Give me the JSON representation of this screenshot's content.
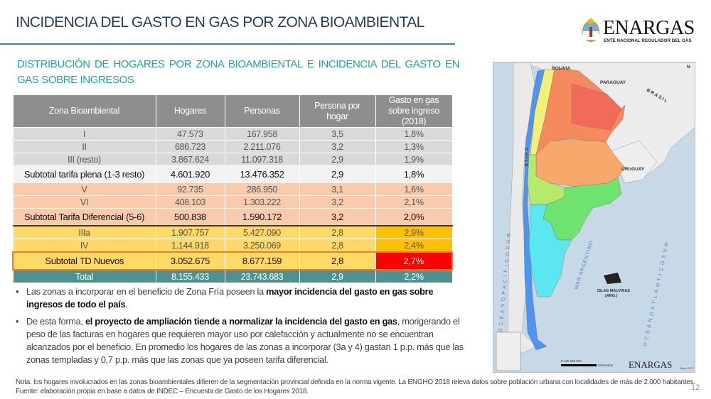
{
  "header": {
    "title": "INCIDENCIA DEL GASTO EN GAS POR ZONA BIOAMBIENTAL",
    "logo_text": "ENARGAS",
    "logo_subtitle": "ENTE NACIONAL REGULADOR DEL GAS"
  },
  "subtitle": "DISTRIBUCIÓN DE HOGARES POR ZONA BIOAMBIENTAL E INCIDENCIA DEL GASTO EN GAS SOBRE INGRESOS",
  "table": {
    "columns": [
      "Zona  Bioambiental",
      "Hogares",
      "Personas",
      "Persona por hogar",
      "Gasto en gas sobre ingreso (2018)"
    ],
    "rows": [
      {
        "zona": "I",
        "hogares": "47.573",
        "personas": "167.958",
        "pph": "3,5",
        "gasto": "1,8%"
      },
      {
        "zona": "II",
        "hogares": "686.723",
        "personas": "2.211.076",
        "pph": "3,2",
        "gasto": "1,3%"
      },
      {
        "zona": "III (resto)",
        "hogares": "3.867.624",
        "personas": "11.097.318",
        "pph": "2,9",
        "gasto": "1,9%"
      },
      {
        "zona": "Subtotal tarifa plena (1-3 resto)",
        "hogares": "4.601.920",
        "personas": "13.476.352",
        "pph": "2,9",
        "gasto": "1,8%"
      },
      {
        "zona": "V",
        "hogares": "92.735",
        "personas": "286.950",
        "pph": "3,1",
        "gasto": "1,6%"
      },
      {
        "zona": "VI",
        "hogares": "408.103",
        "personas": "1.303.222",
        "pph": "3,2",
        "gasto": "2,1%"
      },
      {
        "zona": "Subtotal Tarifa Diferencial (5-6)",
        "hogares": "500.838",
        "personas": "1.590.172",
        "pph": "3,2",
        "gasto": "2,0%"
      },
      {
        "zona": "IIIa",
        "hogares": "1.907.757",
        "personas": "5.427.090",
        "pph": "2,8",
        "gasto": "2,9%"
      },
      {
        "zona": "IV",
        "hogares": "1.144.918",
        "personas": "3.250.069",
        "pph": "2,8",
        "gasto": "2,4%"
      },
      {
        "zona": "Subtotal TD Nuevos",
        "hogares": "3.052.675",
        "personas": "8.677.159",
        "pph": "2,8",
        "gasto": "2,7%"
      },
      {
        "zona": "Total",
        "hogares": "8.155.433",
        "personas": "23.743.683",
        "pph": "2,9",
        "gasto": "2,2%"
      }
    ]
  },
  "bullets": [
    {
      "pre": "Las zonas a incorporar en el beneficio de Zona Fría poseen la ",
      "bold": "mayor incidencia del gasto en gas sobre ingresos de todo el país",
      "post": "."
    },
    {
      "pre": "De esta forma, ",
      "bold": "el proyecto de ampliación tiende a normalizar la incidencia del gasto en gas",
      "post": ", morigerando el peso de las facturas en hogares que requieren mayor uso por calefacción y actualmente no se encuentran alcanzados por el beneficio. En promedio los hogares de las zonas a incorporar (3a y 4) gastan 1 p.p. más que las zonas templadas y 0,7 p.p. más que las zonas que ya poseen tarifa diferencial."
    }
  ],
  "note": "Nota: los hogares involucrados en las zonas bioambientales difieren de la segmentación provincial definida en la norma vigente. La ENGHO 2018 releva datos sobre población urbana con localidades de más de 2.000 habitantes. Fuente: elaboración propia en base a datos de INDEC – Encuesta de Gasto de los Hogares 2018.",
  "page_number": "12",
  "map": {
    "labels": {
      "bolivia": "BOLIVIA",
      "paraguay": "PARAGUAY",
      "brasil": "B R A S I L",
      "uruguay": "URUGUAY",
      "chile": "C H I L E",
      "pacifico": "O C É A N O   P A C Í F I C O   S U R",
      "atlantico": "O C É A N O   A T L Á N T I C O   S U R",
      "mar": "MAR ARGENTINO",
      "malvinas": "ISLAS MALVINAS",
      "malvinas_sub": "(ARG.)",
      "north": "N",
      "scale": "0   125  250       500",
      "scale_unit": "Kilómetros",
      "logo": "ENARGAS",
      "date": "Mayo 2021"
    },
    "zone_colors": {
      "I": "#f26a5a",
      "II": "#f58a5e",
      "III": "#f9a86b",
      "IIIa": "#b6ea6a",
      "IV": "#6fe36f",
      "V": "#5ce6f0",
      "VI": "#4d95f0",
      "puna": "#f0f07a"
    }
  },
  "colors": {
    "title": "#243f55",
    "subtitle": "#1fa59b",
    "rule": "#3b7dc4",
    "header": "#8e8e8e",
    "total": "#4f9090",
    "highlight_orange": "#ffc000",
    "highlight_red": "#ff0000",
    "outline": "#ed7d31"
  }
}
